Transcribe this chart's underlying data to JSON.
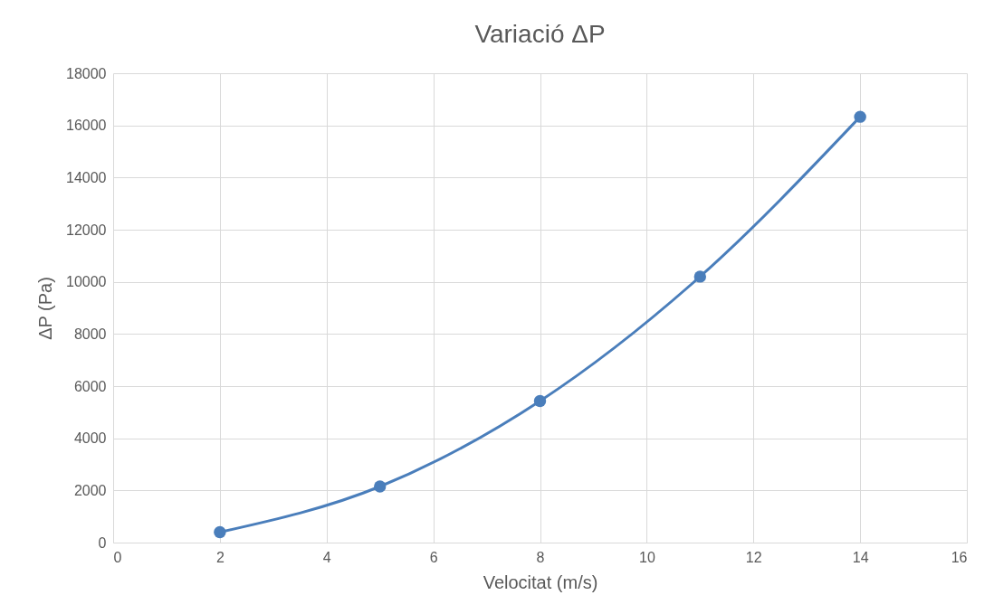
{
  "chart_data": {
    "type": "line",
    "title": "Variació ΔP",
    "xlabel": "Velocitat (m/s)",
    "ylabel": "ΔP (Pa)",
    "x": [
      2,
      5,
      8,
      11,
      14
    ],
    "series": [
      {
        "color": "#4a7ebb",
        "values": [
          400,
          2150,
          5430,
          10200,
          16330
        ]
      }
    ],
    "xlim": [
      0,
      16
    ],
    "xticks": [
      0,
      2,
      4,
      6,
      8,
      10,
      12,
      14,
      16
    ],
    "ylim": [
      0,
      18000
    ],
    "yticks": [
      0,
      2000,
      4000,
      6000,
      8000,
      10000,
      12000,
      14000,
      16000,
      18000
    ],
    "grid": true,
    "marker": "circle",
    "line_style": "solid"
  }
}
